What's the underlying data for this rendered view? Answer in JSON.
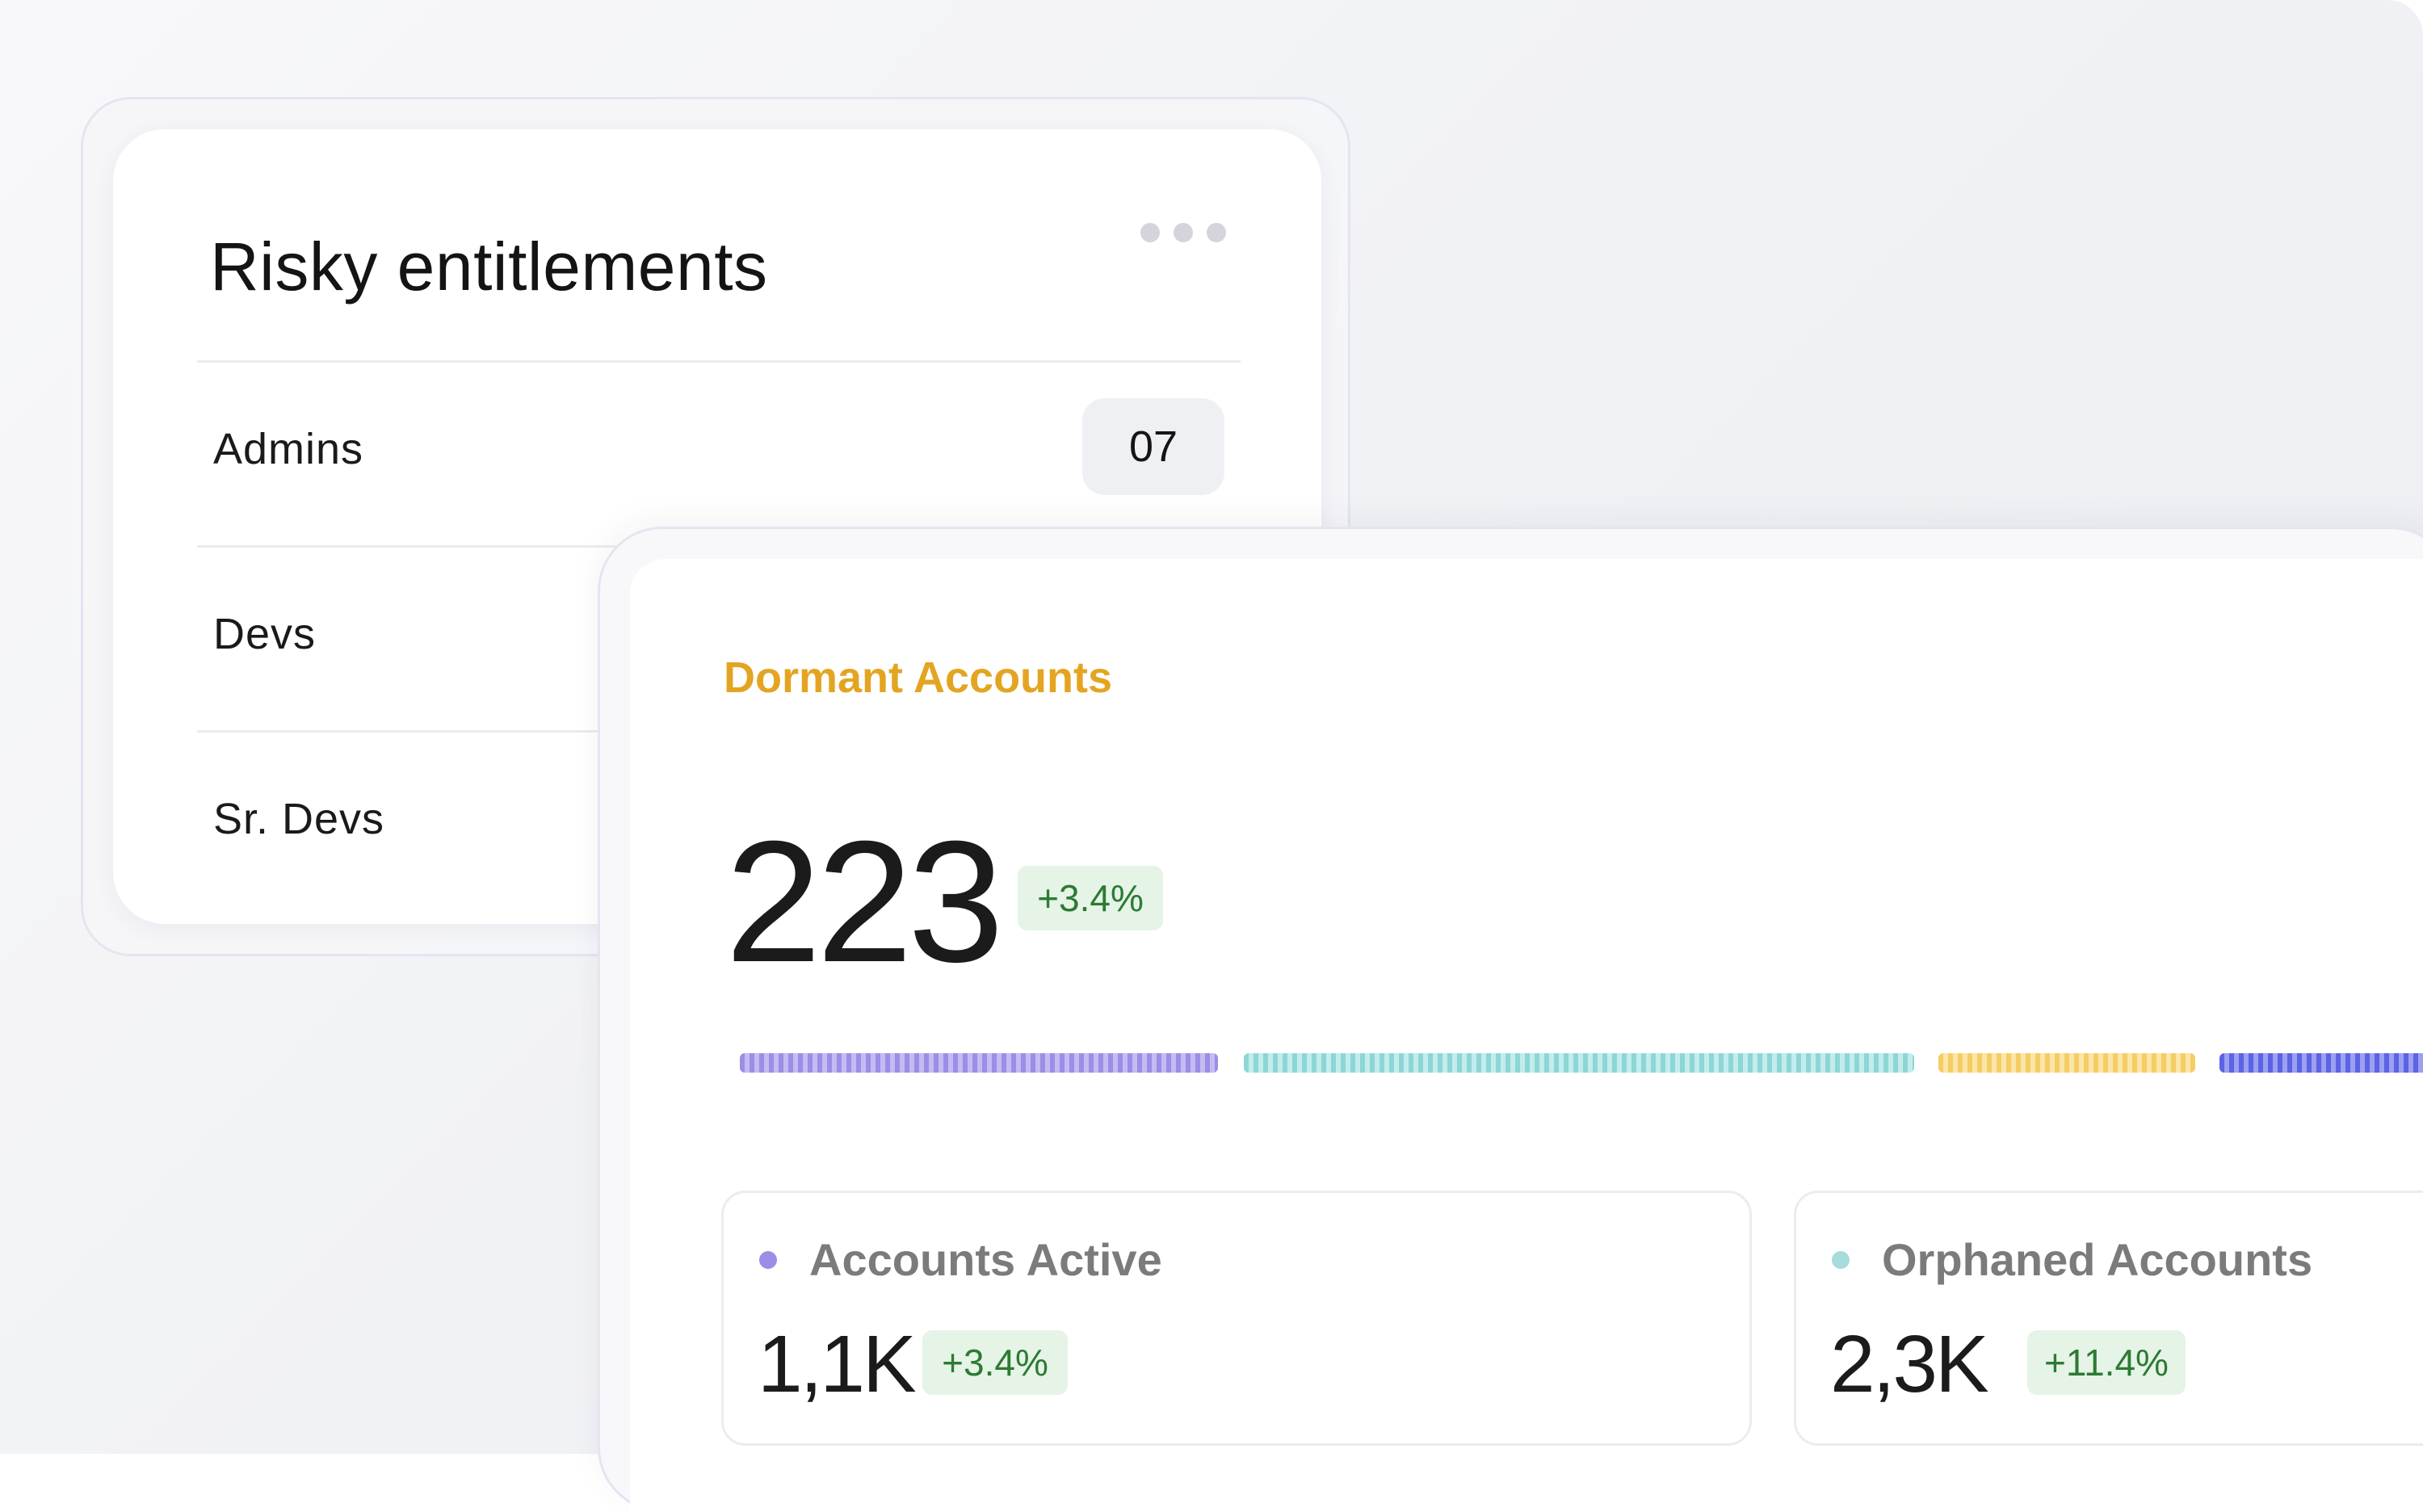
{
  "risky_card": {
    "title": "Risky entitlements",
    "menu_icon": "more-horizontal-icon",
    "rows": [
      {
        "label": "Admins",
        "count": "07"
      },
      {
        "label": "Devs"
      },
      {
        "label": "Sr. Devs"
      }
    ]
  },
  "dormant_card": {
    "title": "Dormant Accounts",
    "title_color": "#e3a521",
    "value": "223",
    "change": "+3.4%",
    "segment_colors": [
      "#9b8ee6",
      "#8ed6d6",
      "#f5cd63",
      "#5c63e4"
    ],
    "metrics": [
      {
        "label": "Accounts Active",
        "value": "1,1K",
        "change": "+3.4%",
        "dot_color": "#9b8ee6"
      },
      {
        "label": "Orphaned Accounts",
        "value": "2,3K",
        "change": "+11.4%",
        "dot_color": "#a6dcdc"
      }
    ]
  },
  "colors": {
    "positive_badge_bg": "#e6f3e7",
    "positive_badge_text": "#2b7b32"
  }
}
